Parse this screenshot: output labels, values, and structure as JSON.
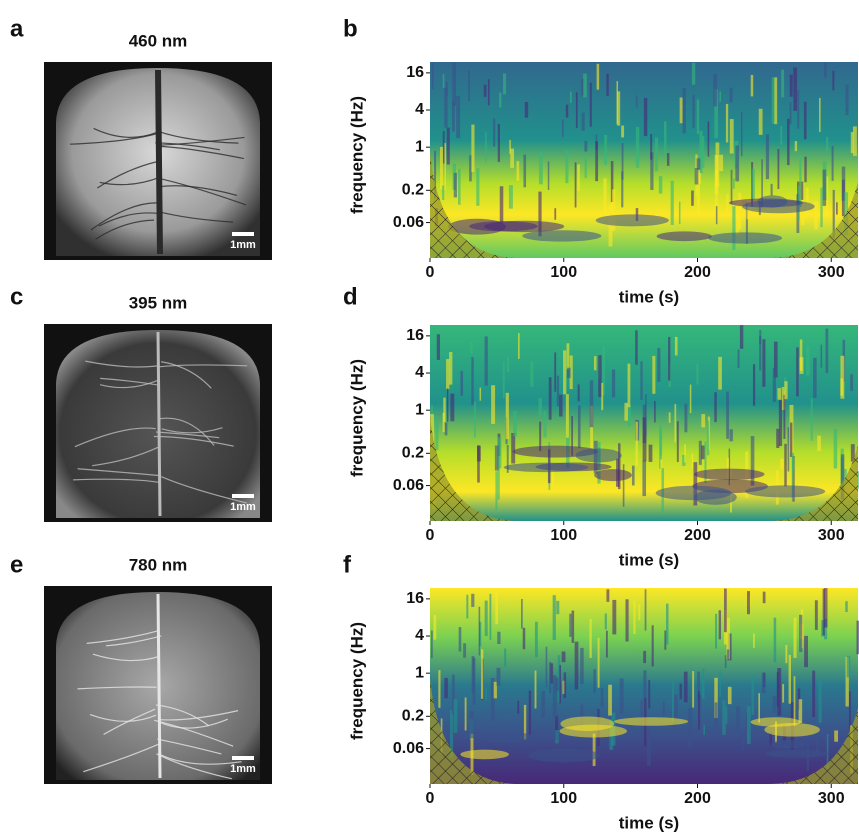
{
  "panels": [
    {
      "label": "a",
      "title": "460 nm",
      "scale_bar": "1mm"
    },
    {
      "label": "c",
      "title": "395 nm",
      "scale_bar": "1mm"
    },
    {
      "label": "e",
      "title": "780 nm",
      "scale_bar": "1mm"
    }
  ],
  "scalograms": [
    {
      "label": "b",
      "xlabel": "time (s)",
      "ylabel": "frequency (Hz)",
      "xlim": [
        0,
        320
      ],
      "xticks": [
        0,
        100,
        200,
        300
      ],
      "ylim": [
        0.016,
        24
      ],
      "yticks": [
        16,
        4,
        1,
        0.2,
        0.06
      ],
      "log_y": true
    },
    {
      "label": "d",
      "xlabel": "time (s)",
      "ylabel": "frequency (Hz)",
      "xlim": [
        0,
        320
      ],
      "xticks": [
        0,
        100,
        200,
        300
      ],
      "ylim": [
        0.016,
        24
      ],
      "yticks": [
        16,
        4,
        1,
        0.2,
        0.06
      ],
      "log_y": true
    },
    {
      "label": "f",
      "xlabel": "time (s)",
      "ylabel": "frequency (Hz)",
      "xlim": [
        0,
        320
      ],
      "xticks": [
        0,
        100,
        200,
        300
      ],
      "ylim": [
        0.016,
        24
      ],
      "yticks": [
        16,
        4,
        1,
        0.2,
        0.06
      ],
      "log_y": true
    }
  ]
}
